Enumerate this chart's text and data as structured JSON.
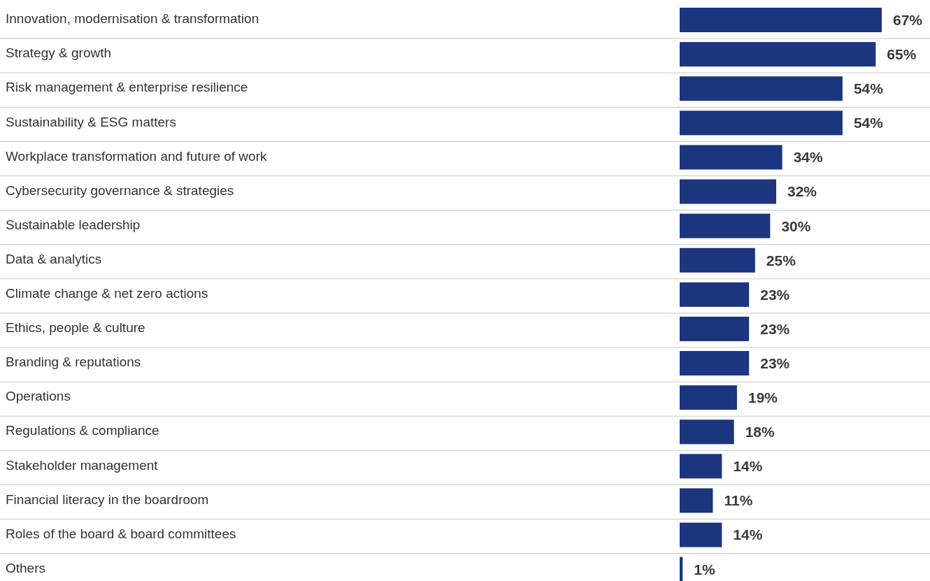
{
  "chart_data": {
    "type": "bar",
    "orientation": "horizontal",
    "grid": "y",
    "categories": [
      "Innovation, modernisation & transformation",
      "Strategy & growth",
      "Risk management & enterprise resilience",
      "Sustainability & ESG matters",
      "Workplace transformation and future of work",
      "Cybersecurity governance & strategies",
      "Sustainable leadership",
      "Data & analytics",
      "Climate change & net zero actions",
      "Ethics, people & culture",
      "Branding & reputations",
      "Operations",
      "Regulations & compliance",
      "Stakeholder management",
      "Financial literacy in the boardroom",
      "Roles of the board & board committees",
      "Others"
    ],
    "values": [
      67,
      65,
      54,
      54,
      34,
      32,
      30,
      25,
      23,
      23,
      23,
      19,
      18,
      14,
      11,
      14,
      1
    ],
    "value_labels": [
      "67%",
      "65%",
      "54%",
      "54%",
      "34%",
      "32%",
      "30%",
      "25%",
      "23%",
      "23%",
      "23%",
      "19%",
      "18%",
      "14%",
      "11%",
      "14%",
      "1%"
    ],
    "color": "#1b357f"
  }
}
